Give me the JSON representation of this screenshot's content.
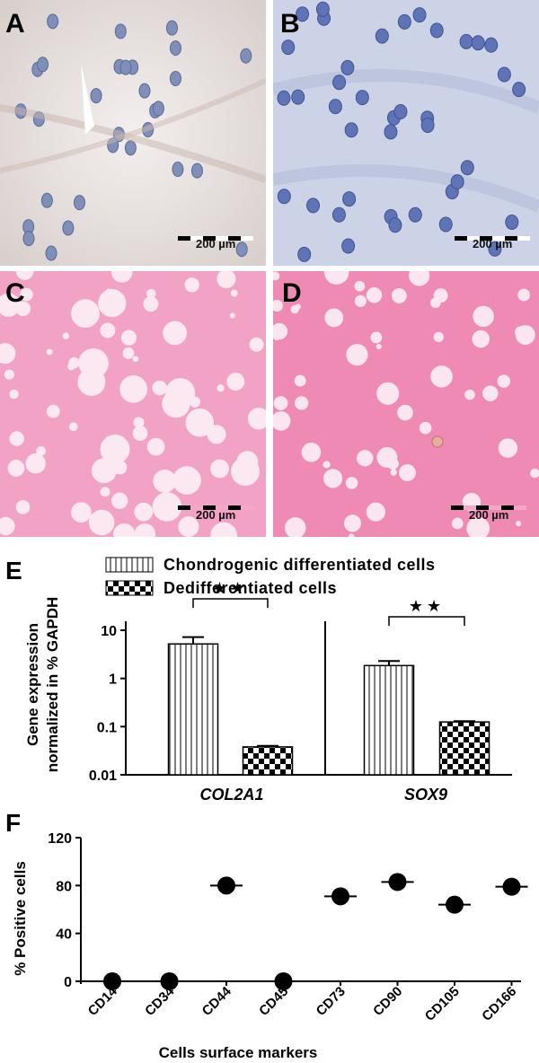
{
  "panels": {
    "A": {
      "letter": "A",
      "scale": "200 µm",
      "stain": "ICC"
    },
    "B": {
      "letter": "B",
      "scale": "200 µm",
      "stain": "ICC"
    },
    "C": {
      "letter": "C",
      "scale": "200 µm",
      "stain": "eosin"
    },
    "D": {
      "letter": "D",
      "scale": "200 µm",
      "stain": "eosin"
    }
  },
  "chart_data": [
    {
      "panel": "E",
      "type": "bar",
      "ylabel": [
        "Gene expression",
        "normalized in % GAPDH"
      ],
      "categories": [
        "COL2A1",
        "SOX9"
      ],
      "yscale": "log",
      "ylim": [
        0.01,
        10
      ],
      "yticks": [
        "0.01",
        "0.1",
        "1",
        "10"
      ],
      "series": [
        {
          "name": "Chondrogenic differentiated cells",
          "values": [
            5.2,
            1.85
          ],
          "errors": [
            2.0,
            0.45
          ],
          "pattern": "vertical-stripes"
        },
        {
          "name": "Dedifferentiated cells",
          "values": [
            0.038,
            0.125
          ],
          "errors": [
            0.002,
            0.005
          ],
          "pattern": "checkerboard"
        }
      ],
      "significance": [
        {
          "category": "COL2A1",
          "label": "★★"
        },
        {
          "category": "SOX9",
          "label": "★★"
        }
      ],
      "legend_position": "top"
    },
    {
      "panel": "F",
      "type": "scatter",
      "xlabel": "Cells surface markers",
      "ylabel": "% Positive cells",
      "ylim": [
        0,
        120
      ],
      "yticks": [
        0,
        40,
        80,
        120
      ],
      "categories": [
        "CD14",
        "CD34",
        "CD44",
        "CD45",
        "CD73",
        "CD90",
        "CD105",
        "CD166"
      ],
      "values": [
        0,
        0,
        80,
        0,
        71,
        83,
        64,
        79
      ],
      "means": [
        0,
        0,
        80,
        0,
        71,
        83,
        64,
        79
      ]
    }
  ]
}
